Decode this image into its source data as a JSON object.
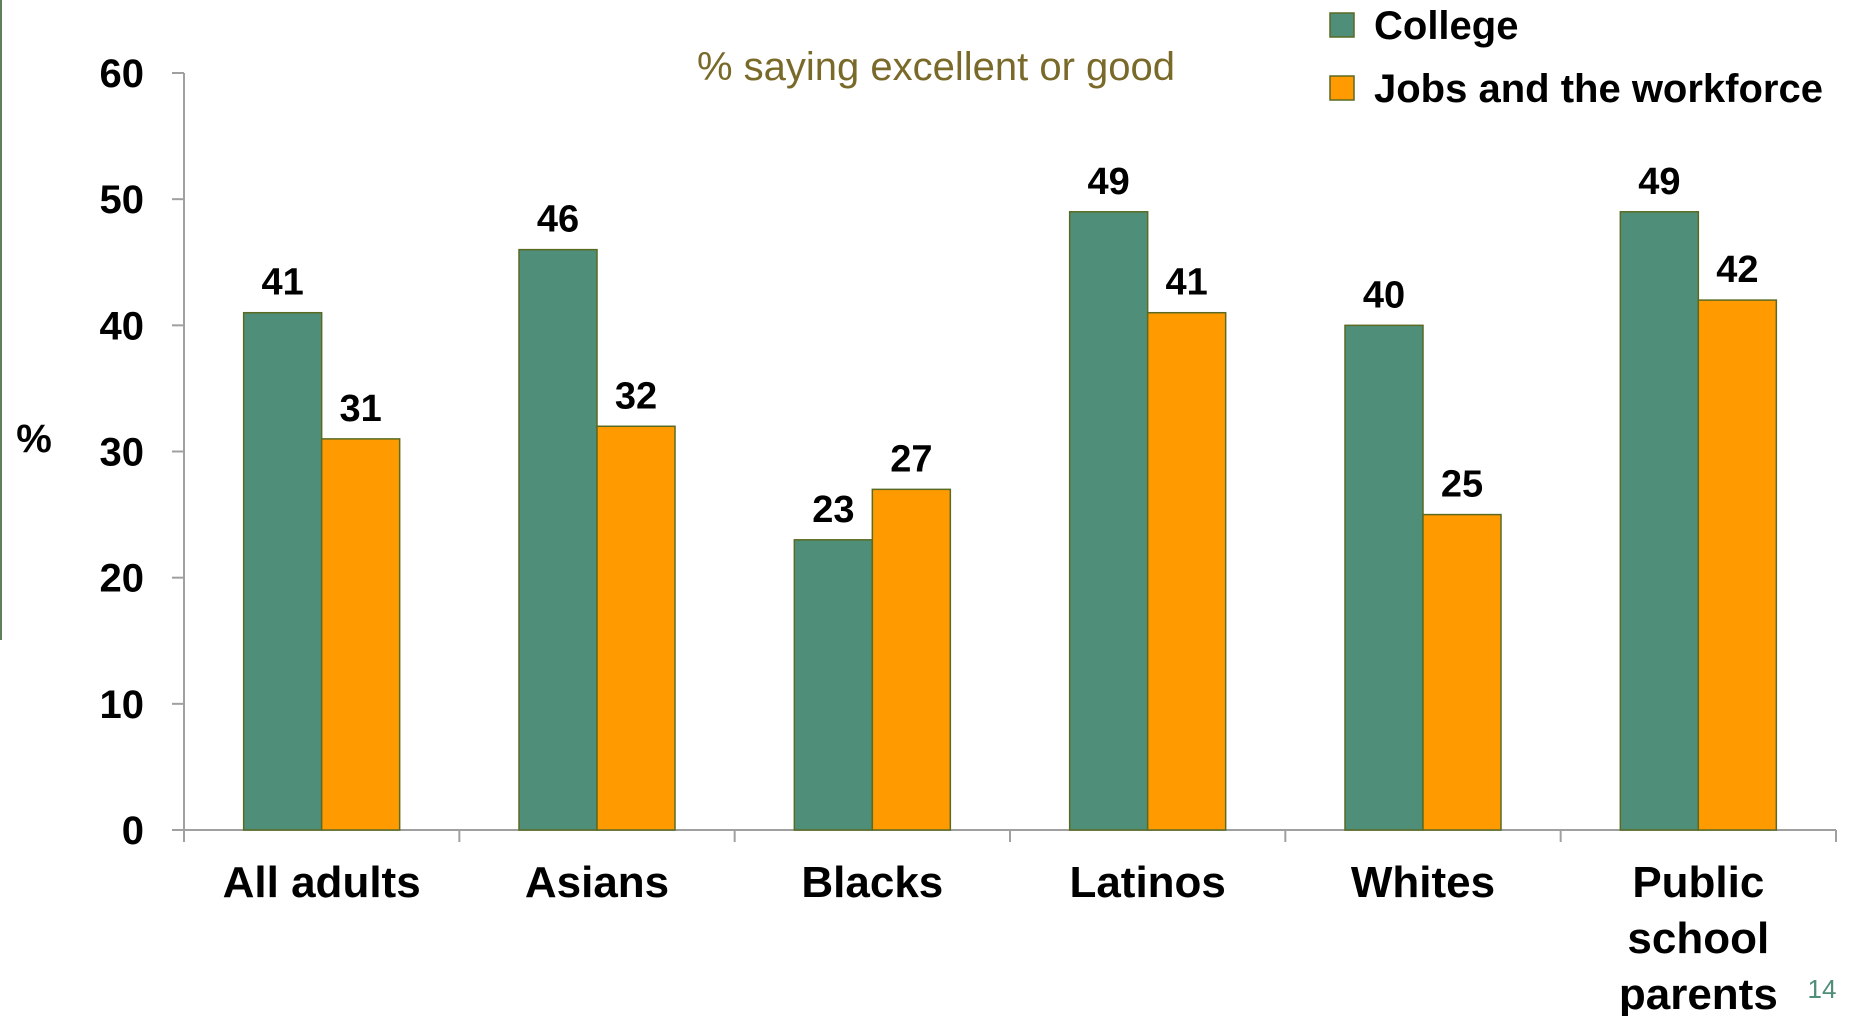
{
  "chart_data": {
    "type": "bar",
    "subtitle": "% saying excellent or good",
    "ylabel": "%",
    "ylim": [
      0,
      60
    ],
    "yticks": [
      0,
      10,
      20,
      30,
      40,
      50,
      60
    ],
    "categories": [
      [
        "All adults"
      ],
      [
        "Asians"
      ],
      [
        "Blacks"
      ],
      [
        "Latinos"
      ],
      [
        "Whites"
      ],
      [
        "Public",
        "school",
        "parents"
      ]
    ],
    "series": [
      {
        "name": "College",
        "color": "#4f8f79",
        "values": [
          41,
          46,
          23,
          49,
          40,
          49
        ]
      },
      {
        "name": "Jobs and the workforce",
        "color": "#ff9a00",
        "values": [
          31,
          32,
          27,
          41,
          25,
          42
        ]
      }
    ],
    "legend_position": "top-right",
    "grid": false
  },
  "page_number": "14",
  "colors": {
    "subtitle": "#7a6a2a",
    "axis": "#a0a0a0",
    "bar_stroke": "#5a6a22",
    "page_number": "#4f8f79"
  }
}
